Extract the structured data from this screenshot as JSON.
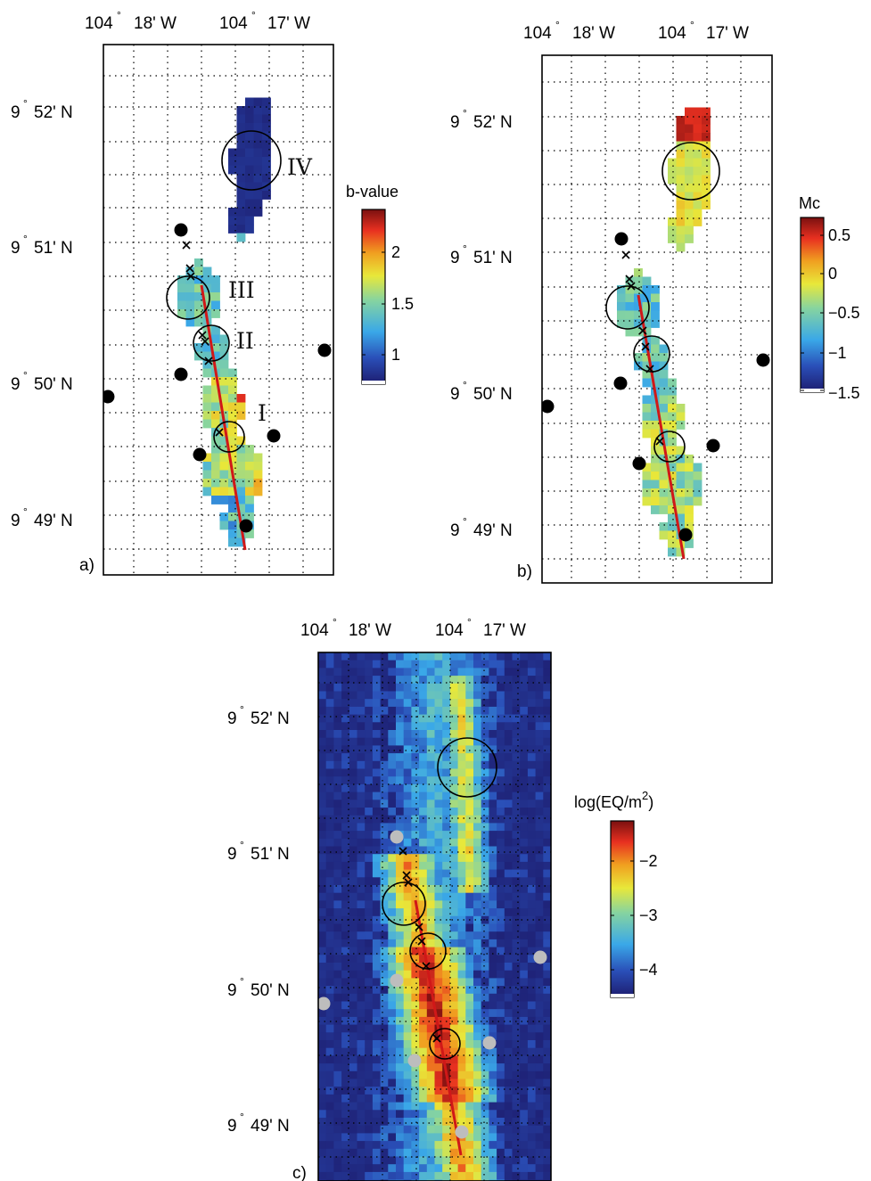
{
  "chart_data": [
    {
      "type": "heatmap",
      "panel_label": "a)",
      "x_tick_labels": [
        {
          "deg": "104",
          "min": "18' W"
        },
        {
          "deg": "104",
          "min": "17' W"
        }
      ],
      "y_tick_labels": [
        {
          "deg": "9",
          "min": "52' N"
        },
        {
          "deg": "9",
          "min": "51' N"
        },
        {
          "deg": "9",
          "min": "50' N"
        },
        {
          "deg": "9",
          "min": "49' N"
        }
      ],
      "region_labels": [
        "IV",
        "III",
        "II",
        "I"
      ],
      "colorbar": {
        "title": "b-value",
        "ticks": [
          "2",
          "1.5",
          "1"
        ],
        "range": [
          0.7,
          2.5
        ],
        "colors": [
          "#1d1c6e",
          "#2a4fb8",
          "#3aa8e8",
          "#86d4a0",
          "#e8e83a",
          "#f0a020",
          "#e83020",
          "#7a1010"
        ]
      }
    },
    {
      "type": "heatmap",
      "panel_label": "b)",
      "x_tick_labels": [
        {
          "deg": "104",
          "min": "18' W"
        },
        {
          "deg": "104",
          "min": "17' W"
        }
      ],
      "y_tick_labels": [
        {
          "deg": "9",
          "min": "52' N"
        },
        {
          "deg": "9",
          "min": "51' N"
        },
        {
          "deg": "9",
          "min": "50' N"
        },
        {
          "deg": "9",
          "min": "49' N"
        }
      ],
      "colorbar": {
        "title": "Mc",
        "ticks": [
          "0.5",
          "0",
          "−0.5",
          "−1",
          "−1.5"
        ],
        "range": [
          -1.6,
          0.7
        ],
        "colors": [
          "#1d1c6e",
          "#2a4fb8",
          "#3aa8e8",
          "#86d4a0",
          "#e8e83a",
          "#f0a020",
          "#e83020",
          "#7a1010"
        ]
      }
    },
    {
      "type": "heatmap",
      "panel_label": "c)",
      "x_tick_labels": [
        {
          "deg": "104",
          "min": "18' W"
        },
        {
          "deg": "104",
          "min": "17' W"
        }
      ],
      "y_tick_labels": [
        {
          "deg": "9",
          "min": "52' N"
        },
        {
          "deg": "9",
          "min": "51' N"
        },
        {
          "deg": "9",
          "min": "50' N"
        },
        {
          "deg": "9",
          "min": "49' N"
        }
      ],
      "colorbar": {
        "title": "log(EQ/m",
        "title_sup": "2",
        "title_end": ")",
        "ticks": [
          "−2",
          "−3",
          "−4"
        ],
        "range": [
          -4.5,
          -1.4
        ],
        "colors": [
          "#1d1c6e",
          "#2a4fb8",
          "#3aa8e8",
          "#86d4a0",
          "#e8e83a",
          "#f0a020",
          "#e83020",
          "#7a1010"
        ]
      }
    }
  ]
}
